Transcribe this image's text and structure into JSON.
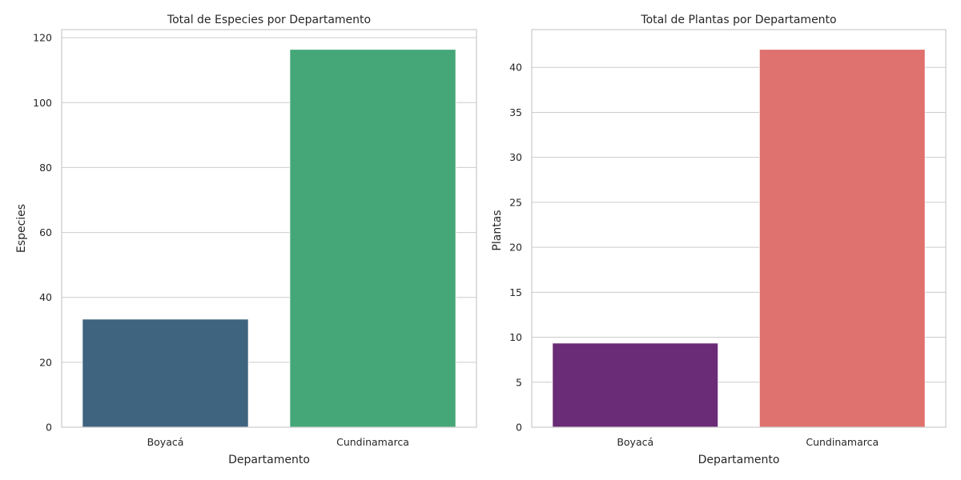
{
  "chart_data": [
    {
      "type": "bar",
      "title": "Total de Especies por Departamento",
      "xlabel": "Departamento",
      "ylabel": "Especies",
      "categories": [
        "Boyacá",
        "Cundinamarca"
      ],
      "values": [
        33.3,
        116.4
      ],
      "colors": [
        "#3e647f",
        "#45a778"
      ],
      "ylim": [
        0,
        122.5
      ],
      "yticks": [
        0,
        20,
        40,
        60,
        80,
        100,
        120
      ],
      "grid": true
    },
    {
      "type": "bar",
      "title": "Total de Plantas por Departamento",
      "xlabel": "Departamento",
      "ylabel": "Plantas",
      "categories": [
        "Boyacá",
        "Cundinamarca"
      ],
      "values": [
        9.35,
        42.0
      ],
      "colors": [
        "#6a2c76",
        "#df716f"
      ],
      "ylim": [
        0,
        44.2
      ],
      "yticks": [
        0,
        5,
        10,
        15,
        20,
        25,
        30,
        35,
        40
      ],
      "grid": true
    }
  ]
}
